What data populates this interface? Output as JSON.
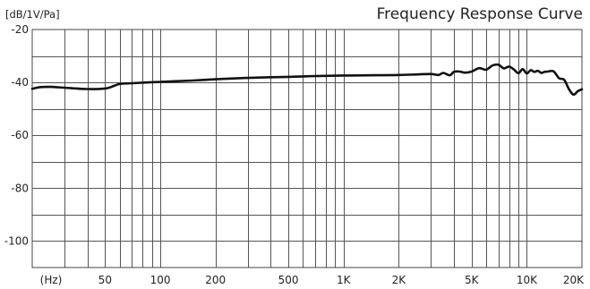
{
  "chart_data": {
    "type": "line",
    "title": "Frequency Response Curve",
    "ylabel": "[dB/1V/Pa]",
    "xlabel": "(Hz)",
    "x_scale": "log",
    "xlim": [
      20,
      20000
    ],
    "ylim": [
      -110,
      -20
    ],
    "grid": true,
    "y_ticks": [
      -20,
      -40,
      -60,
      -80,
      -100
    ],
    "y_tick_labels": [
      "-20",
      "-40",
      "-60",
      "-80",
      "-100"
    ],
    "x_ticks": [
      50,
      100,
      200,
      500,
      1000,
      2000,
      5000,
      10000,
      20000
    ],
    "x_tick_labels": [
      "50",
      "100",
      "200",
      "500",
      "1K",
      "2K",
      "5K",
      "10K",
      "20K"
    ],
    "x_grid": [
      30,
      40,
      50,
      60,
      70,
      80,
      90,
      100,
      200,
      300,
      400,
      500,
      600,
      700,
      800,
      900,
      1000,
      2000,
      3000,
      4000,
      5000,
      6000,
      7000,
      8000,
      9000,
      10000
    ],
    "y_grid": [
      -30,
      -40,
      -50,
      -60,
      -70,
      -80,
      -90,
      -100
    ],
    "series": [
      {
        "color": "#111111",
        "x": [
          20,
          22,
          25,
          30,
          40,
          50,
          55,
          60,
          70,
          100,
          150,
          200,
          300,
          500,
          700,
          1000,
          1500,
          2000,
          2500,
          3000,
          3300,
          3500,
          3800,
          4000,
          4300,
          4600,
          5000,
          5500,
          6000,
          6500,
          7000,
          7500,
          8000,
          8500,
          9000,
          9500,
          10000,
          10500,
          11000,
          11500,
          12000,
          12500,
          13000,
          14000,
          15000,
          16000,
          17000,
          18000,
          19000,
          20000
        ],
        "y": [
          -42.4,
          -41.8,
          -41.7,
          -42.0,
          -42.5,
          -42.3,
          -41.5,
          -40.6,
          -40.3,
          -39.8,
          -39.3,
          -38.8,
          -38.3,
          -37.9,
          -37.6,
          -37.4,
          -37.3,
          -37.2,
          -37.0,
          -36.8,
          -37.2,
          -36.4,
          -37.3,
          -36.0,
          -35.9,
          -36.3,
          -35.9,
          -34.6,
          -35.2,
          -33.6,
          -33.3,
          -34.7,
          -34.0,
          -35.1,
          -36.5,
          -35.0,
          -36.6,
          -35.4,
          -36.0,
          -35.6,
          -36.4,
          -36.0,
          -35.9,
          -35.8,
          -38.4,
          -39.0,
          -42.6,
          -44.6,
          -43.3,
          -42.6
        ]
      }
    ]
  }
}
